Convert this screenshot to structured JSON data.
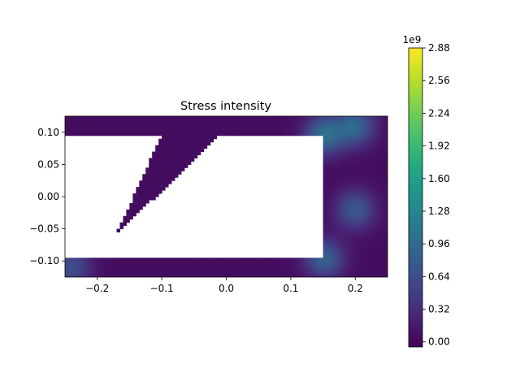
{
  "chart_data": {
    "type": "heatmap",
    "title": "Stress intensity",
    "xlabel": "",
    "ylabel": "",
    "xlim": [
      -0.25,
      0.25
    ],
    "ylim": [
      -0.125,
      0.125
    ],
    "x_ticks": [
      -0.2,
      -0.1,
      0.0,
      0.1,
      0.2
    ],
    "x_tick_labels": [
      "−0.2",
      "−0.1",
      "0.0",
      "0.1",
      "0.2"
    ],
    "y_ticks": [
      0.1,
      0.05,
      0.0,
      -0.05,
      -0.1
    ],
    "y_tick_labels": [
      "0.10",
      "0.05",
      "0.00",
      "−0.05",
      "−0.10"
    ],
    "colorbar": {
      "colormap": "viridis",
      "range": [
        -0.05,
        2.88
      ],
      "offset_label": "1e9",
      "ticks": [
        2.88,
        2.56,
        2.24,
        1.92,
        1.6,
        1.28,
        0.96,
        0.64,
        0.32,
        0.0
      ],
      "tick_labels": [
        "2.88",
        "2.56",
        "2.24",
        "1.92",
        "1.60",
        "1.28",
        "0.96",
        "0.64",
        "0.32",
        "0.00"
      ]
    },
    "fields": {
      "background_stress": 0.05,
      "hole_region": {
        "x": [
          -0.25,
          0.152
        ],
        "y": [
          -0.096,
          0.096
        ]
      },
      "inclined_strut": {
        "top_x": [
          -0.1,
          -0.01
        ],
        "top_y": 0.096,
        "tip_x": -0.17,
        "tip_y": -0.058
      },
      "hotspots": [
        {
          "x": 0.152,
          "y": 0.096,
          "value": 0.95
        },
        {
          "x": 0.2,
          "y": 0.11,
          "value": 0.85
        },
        {
          "x": 0.2,
          "y": -0.02,
          "value": 0.7
        },
        {
          "x": 0.152,
          "y": -0.096,
          "value": 0.8
        },
        {
          "x": -0.24,
          "y": -0.11,
          "value": 0.6
        }
      ]
    },
    "grid": false,
    "legend": "none"
  }
}
